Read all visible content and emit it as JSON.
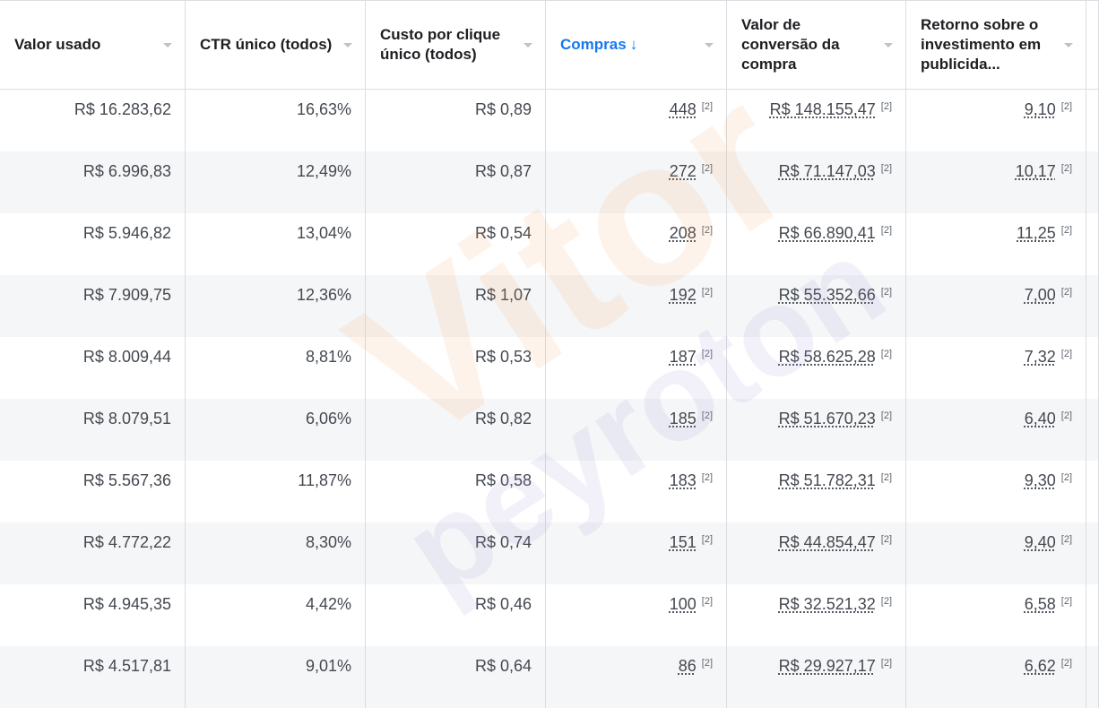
{
  "columns": [
    {
      "label": "Valor usado"
    },
    {
      "label": "CTR único (todos)"
    },
    {
      "label": "Custo por clique único (todos)"
    },
    {
      "label": "Compras",
      "sorted": true,
      "sort_arrow": "↓"
    },
    {
      "label": "Valor de conversão da compra"
    },
    {
      "label": "Retorno sobre o investimento em publicida..."
    }
  ],
  "footnote": "[2]",
  "rows": [
    {
      "spend": "R$ 16.283,62",
      "ctr": "16,63%",
      "cpc": "R$ 0,89",
      "purchases": "448",
      "value": "R$ 148.155,47",
      "roas": "9,10"
    },
    {
      "spend": "R$ 6.996,83",
      "ctr": "12,49%",
      "cpc": "R$ 0,87",
      "purchases": "272",
      "value": "R$ 71.147,03",
      "roas": "10,17"
    },
    {
      "spend": "R$ 5.946,82",
      "ctr": "13,04%",
      "cpc": "R$ 0,54",
      "purchases": "208",
      "value": "R$ 66.890,41",
      "roas": "11,25"
    },
    {
      "spend": "R$ 7.909,75",
      "ctr": "12,36%",
      "cpc": "R$ 1,07",
      "purchases": "192",
      "value": "R$ 55.352,66",
      "roas": "7,00"
    },
    {
      "spend": "R$ 8.009,44",
      "ctr": "8,81%",
      "cpc": "R$ 0,53",
      "purchases": "187",
      "value": "R$ 58.625,28",
      "roas": "7,32"
    },
    {
      "spend": "R$ 8.079,51",
      "ctr": "6,06%",
      "cpc": "R$ 0,82",
      "purchases": "185",
      "value": "R$ 51.670,23",
      "roas": "6,40"
    },
    {
      "spend": "R$ 5.567,36",
      "ctr": "11,87%",
      "cpc": "R$ 0,58",
      "purchases": "183",
      "value": "R$ 51.782,31",
      "roas": "9,30"
    },
    {
      "spend": "R$ 4.772,22",
      "ctr": "8,30%",
      "cpc": "R$ 0,74",
      "purchases": "151",
      "value": "R$ 44.854,47",
      "roas": "9,40"
    },
    {
      "spend": "R$ 4.945,35",
      "ctr": "4,42%",
      "cpc": "R$ 0,46",
      "purchases": "100",
      "value": "R$ 32.521,32",
      "roas": "6,58"
    },
    {
      "spend": "R$ 4.517,81",
      "ctr": "9,01%",
      "cpc": "R$ 0,64",
      "purchases": "86",
      "value": "R$ 29.927,17",
      "roas": "6,62"
    }
  ],
  "watermark": {
    "line1": "Vitor",
    "line2": "peyroton",
    "color1": "#f5a15a",
    "color2": "#9b8fd6"
  },
  "colors": {
    "accent": "#1877f2",
    "border": "#dadde1",
    "row_alt": "#f5f6f7"
  }
}
